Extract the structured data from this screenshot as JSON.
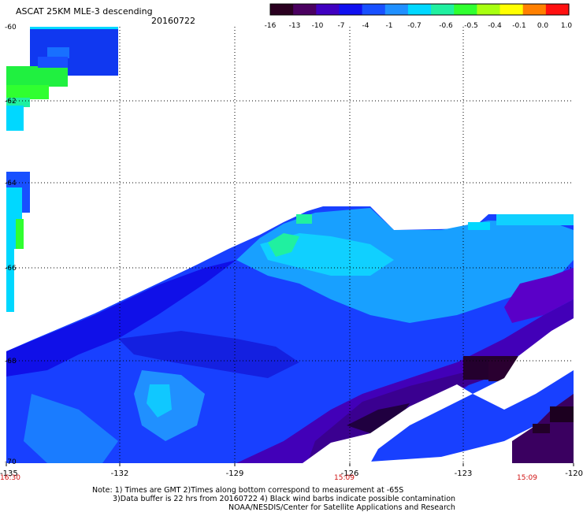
{
  "header": {
    "title": "ASCAT 25KM MLE-3 descending",
    "date": "20160722"
  },
  "colorbar": {
    "labels": [
      "-16",
      "-13",
      "-10",
      "-7",
      "-4",
      "-1",
      "-0.7",
      "-0.6",
      "-0.5",
      "-0.4",
      "-0.1",
      "0.0",
      "1.0"
    ],
    "colors": [
      "#2a0020",
      "#4a0060",
      "#4000c0",
      "#1010f0",
      "#1850ff",
      "#2090ff",
      "#00d8ff",
      "#20f0a0",
      "#30ff30",
      "#a8ff10",
      "#ffff00",
      "#ff8000",
      "#ff1010"
    ]
  },
  "map": {
    "lat_labels": [
      "-60",
      "-62",
      "-64",
      "-66",
      "-68",
      "-70"
    ],
    "lon_labels": [
      "-135",
      "-132",
      "-129",
      "-126",
      "-123",
      "-120"
    ],
    "time_labels": [
      "16:30",
      "15:09",
      "15:09"
    ],
    "time_color": "#d01010"
  },
  "footer": {
    "line1": "Note: 1) Times are GMT 2)Times along bottom correspond to measurement at -65S",
    "line2": "3)Data buffer is 22 hrs from 20160722 4) Black wind barbs indicate possible contamination",
    "line3": "NOAA/NESDIS/Center for Satellite Applications and Research"
  }
}
